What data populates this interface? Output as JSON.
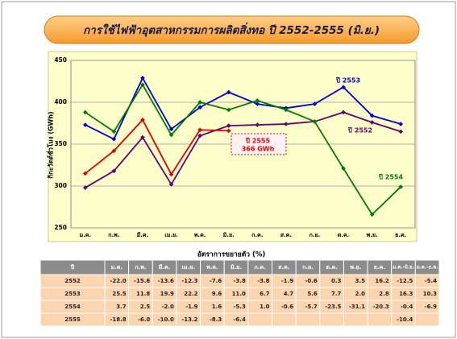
{
  "chart_data": {
    "type": "line",
    "title": "การใช้ไฟฟ้าอุตสาหกรรมการผลิตสิ่งทอ ปี 2552-2555 (มิ.ย.)",
    "y_label": "กิกะวัตต์ชั่วโมง (GWh)",
    "categories": [
      "ม.ค.",
      "ก.พ.",
      "มี.ค.",
      "เม.ย.",
      "พ.ค.",
      "มิ.ย.",
      "ก.ค.",
      "ส.ค.",
      "ก.ย.",
      "ต.ค.",
      "พ.ย.",
      "ธ.ค."
    ],
    "ylim": [
      250,
      450
    ],
    "yticks": [
      250,
      300,
      350,
      400,
      450
    ],
    "grid": true,
    "series": [
      {
        "name": "ปี 2553",
        "color": "#0000cc",
        "values": [
          373,
          356,
          429,
          368,
          394,
          412,
          398,
          393,
          398,
          418,
          384,
          374
        ]
      },
      {
        "name": "ปี 2552",
        "color": "#660066",
        "values": [
          298,
          318,
          358,
          302,
          360,
          372,
          373,
          374,
          377,
          388,
          376,
          365
        ]
      },
      {
        "name": "ปี 2554",
        "color": "#007a00",
        "values": [
          388,
          365,
          421,
          361,
          400,
          391,
          402,
          391,
          377,
          321,
          266,
          299
        ]
      },
      {
        "name": "ปี 2555",
        "color": "#e00000",
        "values": [
          315,
          342,
          379,
          314,
          367,
          366,
          null,
          null,
          null,
          null,
          null,
          null
        ]
      }
    ],
    "annotation": "366 GWh"
  },
  "table": {
    "title": "อัตราการขยายตัว (%)",
    "header": [
      "ปี",
      "ม.ค.",
      "ก.พ.",
      "มี.ค.",
      "เม.ย.",
      "พ.ค.",
      "มิ.ย.",
      "ก.ค.",
      "ส.ค.",
      "ก.ย.",
      "ต.ค.",
      "พ.ย.",
      "ธ.ค.",
      "ม.ค.-มิ.ย.",
      "ม.ค.-ธ.ค."
    ],
    "rows": [
      [
        "2552",
        "-22.0",
        "-15.6",
        "-13.6",
        "-12.3",
        "-7.6",
        "-3.8",
        "-3.8",
        "-1.9",
        "-0.6",
        "0.3",
        "3.5",
        "16.2",
        "-12.5",
        "-5.4"
      ],
      [
        "2553",
        "25.5",
        "11.8",
        "19.9",
        "22.2",
        "9.6",
        "11.0",
        "6.7",
        "4.7",
        "5.6",
        "7.7",
        "2.0",
        "2.8",
        "16.3",
        "10.3"
      ],
      [
        "2554",
        "3.7",
        "2.5",
        "-2.0",
        "-1.9",
        "1.6",
        "-5.3",
        "1.0",
        "-0.6",
        "-5.7",
        "-23.5",
        "-31.1",
        "-20.3",
        "-0.4",
        "-6.9"
      ],
      [
        "2555",
        "-18.8",
        "-6.0",
        "-10.0",
        "-13.2",
        "-8.3",
        "-6.4",
        null,
        null,
        null,
        null,
        null,
        null,
        "-10.4",
        null
      ]
    ]
  }
}
